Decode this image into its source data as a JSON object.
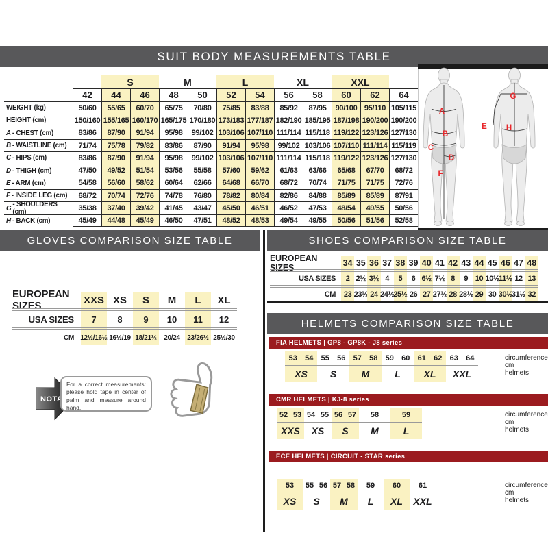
{
  "titles": {
    "suit": "SUIT BODY MEASUREMENTS TABLE",
    "gloves": "GLOVES COMPARISON SIZE TABLE",
    "shoes": "SHOES COMPARISON SIZE TABLE",
    "helmets": "HELMETS COMPARISON SIZE TABLE"
  },
  "colors": {
    "bar_gray": "#58585A",
    "bar_red": "#9B1B1F",
    "highlight_yellow": "#FAF2C2",
    "diagram_letter_red": "#E8262A"
  },
  "suit_table": {
    "size_groups": [
      {
        "label": "",
        "span": 1,
        "highlight": false
      },
      {
        "label": "S",
        "span": 2,
        "highlight": true
      },
      {
        "label": "M",
        "span": 2,
        "highlight": false
      },
      {
        "label": "L",
        "span": 2,
        "highlight": true
      },
      {
        "label": "XL",
        "span": 2,
        "highlight": false
      },
      {
        "label": "XXL",
        "span": 2,
        "highlight": true
      },
      {
        "label": "",
        "span": 1,
        "highlight": false
      }
    ],
    "sizes": [
      "42",
      "44",
      "46",
      "48",
      "50",
      "52",
      "54",
      "56",
      "58",
      "60",
      "62",
      "64"
    ],
    "highlighted_columns": [
      1,
      2,
      5,
      6,
      9,
      10
    ],
    "rows": [
      {
        "prefix": "",
        "label": "WEIGHT (kg)",
        "values": [
          "50/60",
          "55/65",
          "60/70",
          "65/75",
          "70/80",
          "75/85",
          "83/88",
          "85/92",
          "87/95",
          "90/100",
          "95/110",
          "105/115"
        ]
      },
      {
        "prefix": "",
        "label": "HEIGHT (cm)",
        "values": [
          "150/160",
          "155/165",
          "160/170",
          "165/175",
          "170/180",
          "173/183",
          "177/187",
          "182/190",
          "185/195",
          "187/198",
          "190/200",
          "190/200"
        ]
      },
      {
        "prefix": "A",
        "label": "CHEST (cm)",
        "values": [
          "83/86",
          "87/90",
          "91/94",
          "95/98",
          "99/102",
          "103/106",
          "107/110",
          "111/114",
          "115/118",
          "119/122",
          "123/126",
          "127/130"
        ]
      },
      {
        "prefix": "B",
        "label": "WAISTLINE (cm)",
        "values": [
          "71/74",
          "75/78",
          "79/82",
          "83/86",
          "87/90",
          "91/94",
          "95/98",
          "99/102",
          "103/106",
          "107/110",
          "111/114",
          "115/119"
        ]
      },
      {
        "prefix": "C",
        "label": "HIPS (cm)",
        "values": [
          "83/86",
          "87/90",
          "91/94",
          "95/98",
          "99/102",
          "103/106",
          "107/110",
          "111/114",
          "115/118",
          "119/122",
          "123/126",
          "127/130"
        ]
      },
      {
        "prefix": "D",
        "label": "THIGH (cm)",
        "values": [
          "47/50",
          "49/52",
          "51/54",
          "53/56",
          "55/58",
          "57/60",
          "59/62",
          "61/63",
          "63/66",
          "65/68",
          "67/70",
          "68/72"
        ]
      },
      {
        "prefix": "E",
        "label": "ARM (cm)",
        "values": [
          "54/58",
          "56/60",
          "58/62",
          "60/64",
          "62/66",
          "64/68",
          "66/70",
          "68/72",
          "70/74",
          "71/75",
          "71/75",
          "72/76"
        ]
      },
      {
        "prefix": "F",
        "label": "INSIDE LEG (cm)",
        "values": [
          "68/72",
          "70/74",
          "72/76",
          "74/78",
          "76/80",
          "78/82",
          "80/84",
          "82/86",
          "84/88",
          "85/89",
          "85/89",
          "87/91"
        ]
      },
      {
        "prefix": "G",
        "label": "SHOULDERS (cm)",
        "values": [
          "35/38",
          "37/40",
          "39/42",
          "41/45",
          "43/47",
          "45/50",
          "46/51",
          "46/52",
          "47/53",
          "48/54",
          "49/55",
          "50/56"
        ]
      },
      {
        "prefix": "H",
        "label": "BACK (cm)",
        "values": [
          "45/49",
          "44/48",
          "45/49",
          "46/50",
          "47/51",
          "48/52",
          "48/53",
          "49/54",
          "49/55",
          "50/56",
          "51/56",
          "52/58"
        ]
      }
    ]
  },
  "body_diagram": {
    "labels": [
      "A",
      "B",
      "C",
      "D",
      "F",
      "G",
      "E",
      "H"
    ]
  },
  "gloves_table": {
    "row_labels": [
      "EUROPEAN SIZES",
      "USA SIZES",
      "CM"
    ],
    "columns": [
      {
        "eu": "XXS",
        "usa": "7",
        "cm": "12½/16½",
        "highlight": true
      },
      {
        "eu": "XS",
        "usa": "8",
        "cm": "16½/19",
        "highlight": false
      },
      {
        "eu": "S",
        "usa": "9",
        "cm": "18/21½",
        "highlight": true
      },
      {
        "eu": "M",
        "usa": "10",
        "cm": "20/24",
        "highlight": false
      },
      {
        "eu": "L",
        "usa": "11",
        "cm": "23/26½",
        "highlight": true
      },
      {
        "eu": "XL",
        "usa": "12",
        "cm": "25½/30",
        "highlight": false
      }
    ]
  },
  "shoes_table": {
    "row_labels": [
      "EUROPEAN SIZES",
      "USA SIZES",
      "CM"
    ],
    "columns": [
      {
        "eu": "34",
        "usa": "2",
        "cm": "23",
        "highlight": true
      },
      {
        "eu": "35",
        "usa": "2½",
        "cm": "23½",
        "highlight": false
      },
      {
        "eu": "36",
        "usa": "3½",
        "cm": "24",
        "highlight": true
      },
      {
        "eu": "37",
        "usa": "4",
        "cm": "24½",
        "highlight": false
      },
      {
        "eu": "38",
        "usa": "5",
        "cm": "25½",
        "highlight": true
      },
      {
        "eu": "39",
        "usa": "6",
        "cm": "26",
        "highlight": false
      },
      {
        "eu": "40",
        "usa": "6½",
        "cm": "27",
        "highlight": true
      },
      {
        "eu": "41",
        "usa": "7½",
        "cm": "27½",
        "highlight": false
      },
      {
        "eu": "42",
        "usa": "8",
        "cm": "28",
        "highlight": true
      },
      {
        "eu": "43",
        "usa": "9",
        "cm": "28½",
        "highlight": false
      },
      {
        "eu": "44",
        "usa": "10",
        "cm": "29",
        "highlight": true
      },
      {
        "eu": "45",
        "usa": "10½",
        "cm": "30",
        "highlight": false
      },
      {
        "eu": "46",
        "usa": "11½",
        "cm": "30½",
        "highlight": true
      },
      {
        "eu": "47",
        "usa": "12",
        "cm": "31½",
        "highlight": false
      },
      {
        "eu": "48",
        "usa": "13",
        "cm": "32",
        "highlight": true
      }
    ]
  },
  "helmet_tables": [
    {
      "header": "FIA HELMETS | GP8 - GP8K - J8 series",
      "caption_top": "circumference cm",
      "caption_bottom": "helmets",
      "groups": [
        {
          "size": "XS",
          "circumferences": [
            "53",
            "54"
          ],
          "highlight": true
        },
        {
          "size": "S",
          "circumferences": [
            "55",
            "56"
          ],
          "highlight": false
        },
        {
          "size": "M",
          "circumferences": [
            "57",
            "58"
          ],
          "highlight": true
        },
        {
          "size": "L",
          "circumferences": [
            "59",
            "60"
          ],
          "highlight": false
        },
        {
          "size": "XL",
          "circumferences": [
            "61",
            "62"
          ],
          "highlight": true
        },
        {
          "size": "XXL",
          "circumferences": [
            "63",
            "64"
          ],
          "highlight": false
        }
      ]
    },
    {
      "header": "CMR HELMETS | KJ-8 series",
      "caption_top": "circumference cm",
      "caption_bottom": "helmets",
      "groups": [
        {
          "size": "XXS",
          "circumferences": [
            "52",
            "53"
          ],
          "highlight": true
        },
        {
          "size": "XS",
          "circumferences": [
            "54",
            "55"
          ],
          "highlight": false
        },
        {
          "size": "S",
          "circumferences": [
            "56",
            "57"
          ],
          "highlight": true
        },
        {
          "size": "M",
          "circumferences": [
            "58"
          ],
          "highlight": false
        },
        {
          "size": "L",
          "circumferences": [
            "59"
          ],
          "highlight": true
        }
      ]
    },
    {
      "header": "ECE HELMETS | CIRCUIT - STAR series",
      "caption_top": "circumference cm",
      "caption_bottom": "helmets",
      "groups": [
        {
          "size": "XS",
          "circumferences": [
            "53"
          ],
          "highlight": true
        },
        {
          "size": "S",
          "circumferences": [
            "55",
            "56"
          ],
          "highlight": false
        },
        {
          "size": "M",
          "circumferences": [
            "57",
            "58"
          ],
          "highlight": true
        },
        {
          "size": "L",
          "circumferences": [
            "59"
          ],
          "highlight": false
        },
        {
          "size": "XL",
          "circumferences": [
            "60"
          ],
          "highlight": true
        },
        {
          "size": "XXL",
          "circumferences": [
            "61"
          ],
          "highlight": false
        }
      ]
    }
  ],
  "nota": {
    "label": "NOTA",
    "text": "For a correct measurements: please hold tape in center of palm and measure around hand."
  }
}
